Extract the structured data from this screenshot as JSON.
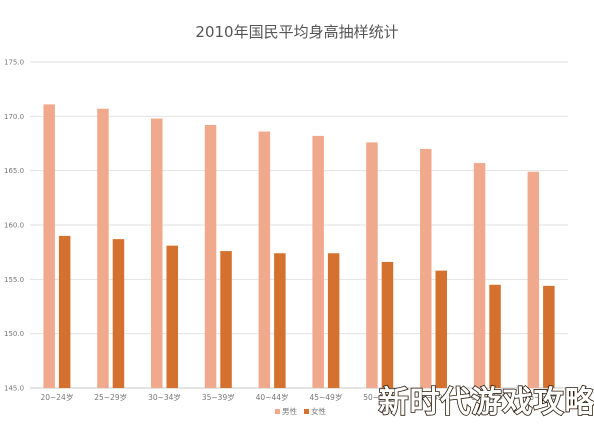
{
  "chart_data": {
    "type": "bar",
    "title": "2010年国民平均身高抽样统计",
    "xlabel": "",
    "ylabel": "",
    "categories": [
      "20~24岁",
      "25~29岁",
      "30~34岁",
      "35~39岁",
      "40~44岁",
      "45~49岁",
      "50~54岁",
      "55~59岁",
      "60~64岁",
      "65~69岁"
    ],
    "series": [
      {
        "name": "男性",
        "color": "#f0a98c",
        "values": [
          171.1,
          170.7,
          169.8,
          169.2,
          168.6,
          168.2,
          167.6,
          167.0,
          165.7,
          164.9
        ]
      },
      {
        "name": "女性",
        "color": "#d4712f",
        "values": [
          159.0,
          158.7,
          158.1,
          157.6,
          157.4,
          157.4,
          156.6,
          155.8,
          154.5,
          154.4
        ]
      }
    ],
    "ylim": [
      145.0,
      175.0
    ],
    "yticks": [
      "145.0",
      "150.0",
      "155.0",
      "160.0",
      "165.0",
      "170.0",
      "175.0"
    ],
    "grid": true,
    "legend_position": "bottom"
  },
  "watermark": {
    "text": "新时代游戏攻略"
  }
}
